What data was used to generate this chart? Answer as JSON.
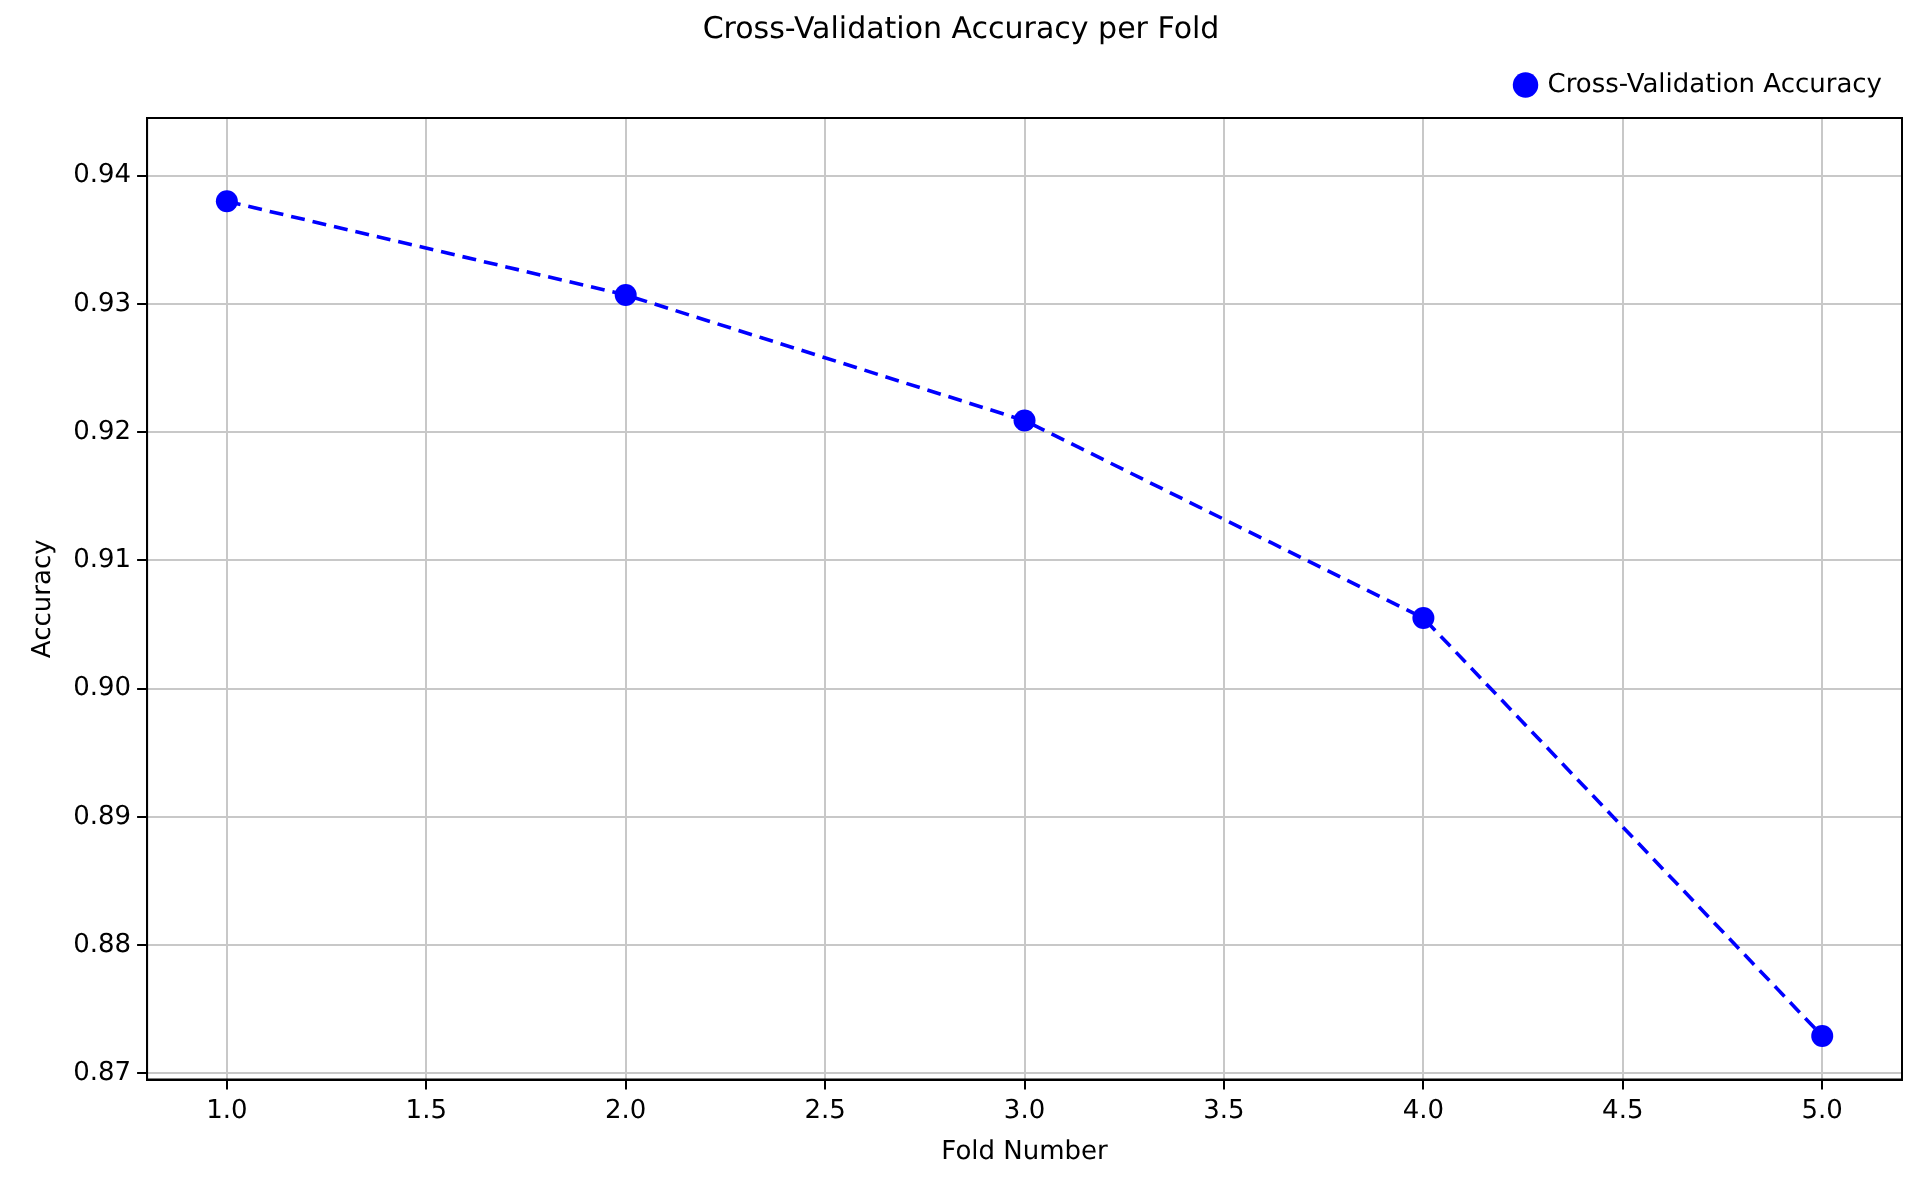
{
  "chart_data": {
    "type": "line",
    "title": "Cross-Validation Accuracy per Fold",
    "xlabel": "Fold Number",
    "ylabel": "Accuracy",
    "x": [
      1,
      2,
      3,
      4,
      5
    ],
    "series": [
      {
        "name": "Cross-Validation Accuracy",
        "color": "#0000ff",
        "values": [
          0.938,
          0.9307,
          0.9209,
          0.9055,
          0.8729
        ]
      }
    ],
    "xlim": [
      0.8,
      5.2
    ],
    "xticks": [
      {
        "value": 1,
        "label": "1.0"
      },
      {
        "value": 1.5,
        "label": "1.5"
      },
      {
        "value": 2,
        "label": "2.0"
      },
      {
        "value": 2.5,
        "label": "2.5"
      },
      {
        "value": 3,
        "label": "3.0"
      },
      {
        "value": 3.5,
        "label": "3.5"
      },
      {
        "value": 4,
        "label": "4.0"
      },
      {
        "value": 4.5,
        "label": "4.5"
      },
      {
        "value": 5,
        "label": "5.0"
      }
    ],
    "ylim": [
      0.8695,
      0.9445
    ],
    "yticks": [
      {
        "value": 0.87,
        "label": "0.87"
      },
      {
        "value": 0.88,
        "label": "0.88"
      },
      {
        "value": 0.89,
        "label": "0.89"
      },
      {
        "value": 0.9,
        "label": "0.90"
      },
      {
        "value": 0.91,
        "label": "0.91"
      },
      {
        "value": 0.92,
        "label": "0.92"
      },
      {
        "value": 0.93,
        "label": "0.93"
      },
      {
        "value": 0.94,
        "label": "0.94"
      }
    ],
    "grid": true,
    "legend": "top right",
    "marker": "circle",
    "line_style": "dashed"
  }
}
